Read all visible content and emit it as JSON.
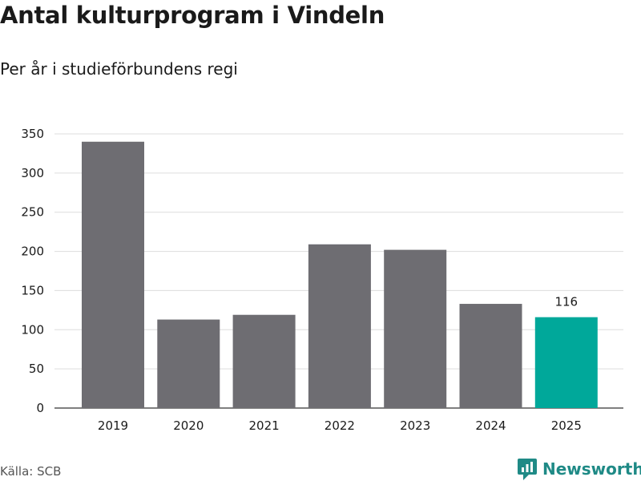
{
  "title": "Antal kulturprogram i Vindeln",
  "subtitle": "Per år i studieförbundens regi",
  "source": "Källa: SCB",
  "brand": "Newsworthy",
  "colors": {
    "bar": "#6e6d72",
    "highlight": "#00a89a",
    "grid": "#dddddd",
    "brand": "#1f8a86"
  },
  "chart_data": {
    "type": "bar",
    "categories": [
      "2019",
      "2020",
      "2021",
      "2022",
      "2023",
      "2024",
      "2025"
    ],
    "values": [
      340,
      113,
      119,
      209,
      202,
      133,
      116
    ],
    "highlight_index": 6,
    "highlight_label": "116",
    "ylim": [
      0,
      350
    ],
    "yticks": [
      "0",
      "50",
      "100",
      "150",
      "200",
      "250",
      "300",
      "350"
    ],
    "grid": true
  }
}
